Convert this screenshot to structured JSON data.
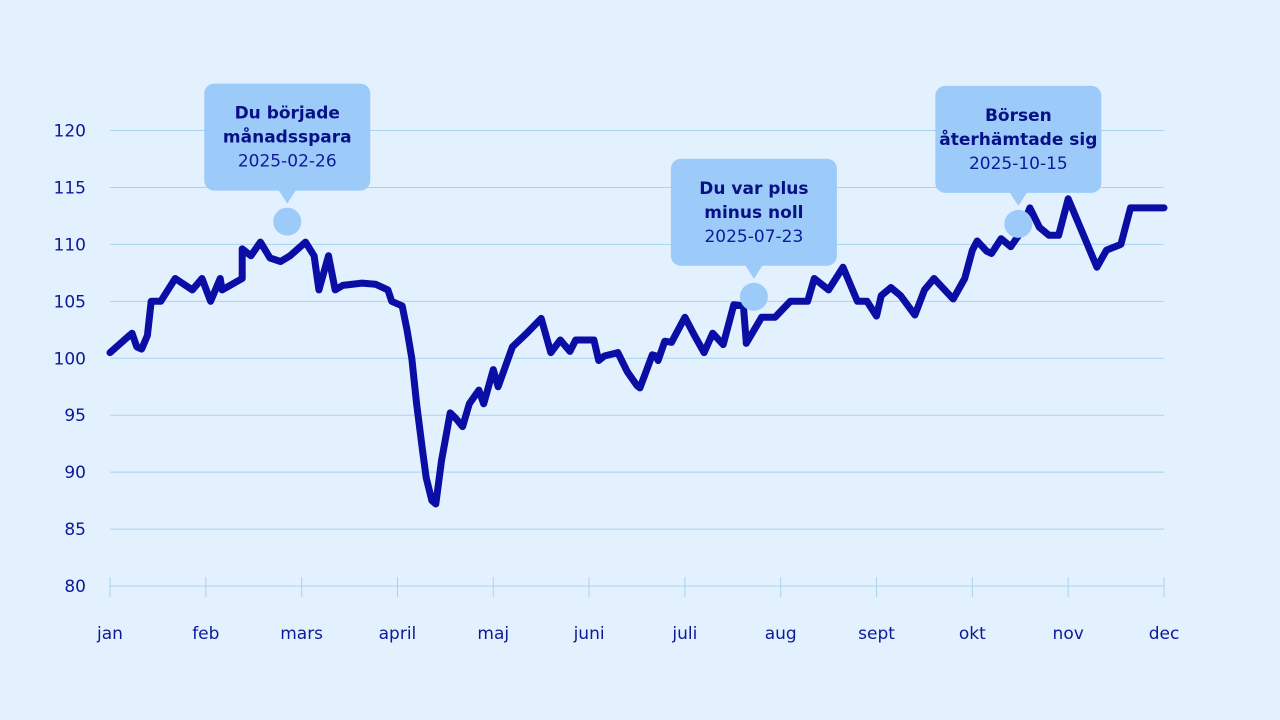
{
  "chart_data": {
    "type": "line",
    "title": "",
    "xlabel": "",
    "ylabel": "",
    "ylim": [
      80,
      120
    ],
    "xlim": [
      0,
      11
    ],
    "yticks": [
      80,
      85,
      90,
      95,
      100,
      105,
      110,
      115,
      120
    ],
    "categories": [
      "jan",
      "feb",
      "mars",
      "april",
      "maj",
      "juni",
      "juli",
      "aug",
      "sept",
      "okt",
      "nov",
      "dec"
    ],
    "grid": true,
    "colors": {
      "line": "#0a0ea5",
      "grid": "#a8d3f0",
      "marker": "#9ccbfa",
      "callout": "#9ccbfa"
    },
    "series": [
      {
        "name": "",
        "x": [
          0.0,
          0.23,
          0.28,
          0.33,
          0.39,
          0.43,
          0.53,
          0.68,
          0.68,
          0.86,
          0.96,
          1.05,
          1.15,
          1.17,
          1.38,
          1.38,
          1.47,
          1.57,
          1.67,
          1.78,
          1.88,
          2.04,
          2.13,
          2.18,
          2.28,
          2.35,
          2.43,
          2.63,
          2.77,
          2.9,
          2.94,
          3.05,
          3.1,
          3.15,
          3.2,
          3.26,
          3.3,
          3.36,
          3.4,
          3.46,
          3.55,
          3.6,
          3.62,
          3.68,
          3.75,
          3.85,
          3.9,
          4.0,
          4.05,
          4.2,
          4.35,
          4.5,
          4.6,
          4.7,
          4.8,
          4.86,
          4.92,
          5.0,
          5.05,
          5.1,
          5.16,
          5.3,
          5.4,
          5.5,
          5.53,
          5.58,
          5.66,
          5.7,
          5.72,
          5.79,
          5.86,
          6.0,
          6.1,
          6.2,
          6.29,
          6.4,
          6.51,
          6.61,
          6.64,
          6.64,
          6.8,
          6.94,
          7.1,
          7.28,
          7.35,
          7.5,
          7.65,
          7.8,
          7.9,
          8.0,
          8.05,
          8.15,
          8.25,
          8.4,
          8.5,
          8.6,
          8.8,
          8.92,
          9.0,
          9.05,
          9.15,
          9.2,
          9.3,
          9.4,
          9.5,
          9.6,
          9.7,
          9.8,
          9.9,
          10.0,
          10.15,
          10.3,
          10.4,
          10.55,
          10.65,
          10.7,
          10.75,
          10.85,
          10.95,
          11.0
        ],
        "values": [
          100.5,
          102.2,
          101.0,
          100.8,
          102.0,
          105.0,
          105.0,
          107.0,
          107.0,
          106.0,
          107.0,
          105.0,
          107.0,
          106.0,
          107.0,
          109.6,
          109.0,
          110.2,
          108.8,
          108.5,
          109.0,
          110.2,
          109.0,
          106.0,
          109.0,
          106.0,
          106.4,
          106.6,
          106.5,
          106.0,
          105.0,
          104.6,
          102.5,
          100.0,
          96.0,
          92.0,
          89.5,
          87.5,
          87.2,
          91.0,
          95.2,
          94.8,
          94.6,
          94.0,
          96.0,
          97.2,
          96.0,
          99.0,
          97.5,
          101.0,
          102.2,
          103.5,
          100.5,
          101.6,
          100.6,
          101.6,
          101.6,
          101.6,
          101.6,
          99.8,
          100.2,
          100.5,
          98.8,
          97.6,
          97.4,
          98.5,
          100.3,
          100.2,
          99.8,
          101.5,
          101.4,
          103.6,
          102.0,
          100.5,
          102.2,
          101.2,
          104.7,
          104.6,
          101.5,
          101.3,
          103.6,
          103.6,
          105.0,
          105.0,
          107.0,
          106.0,
          108.0,
          105.0,
          105.0,
          103.7,
          105.5,
          106.2,
          105.5,
          103.8,
          106.0,
          107.0,
          105.2,
          107.0,
          109.5,
          110.3,
          109.4,
          109.2,
          110.5,
          109.8,
          111.0,
          113.2,
          111.5,
          110.8,
          110.8,
          114.0,
          111.0,
          108.0,
          109.5,
          110.0,
          113.2,
          113.2,
          113.2,
          113.2,
          113.2,
          113.2
        ]
      }
    ],
    "annotations": [
      {
        "title": "Du började månadsspara",
        "date": "2025-02-26",
        "x": 1.85,
        "y": 112.0
      },
      {
        "title": "Du var plus minus noll",
        "date": "2025-07-23",
        "x": 6.72,
        "y": 105.4
      },
      {
        "title": "Börsen återhämtade sig",
        "date": "2025-10-15",
        "x": 9.48,
        "y": 111.8
      }
    ]
  }
}
